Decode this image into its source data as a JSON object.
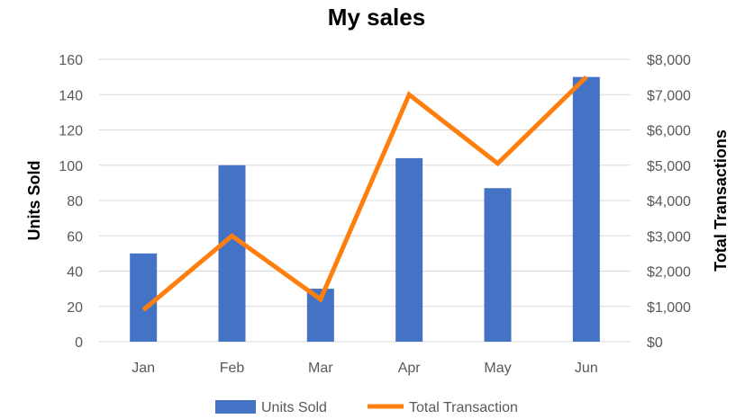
{
  "chart_data": {
    "type": "bar",
    "title": "My sales",
    "categories": [
      "Jan",
      "Feb",
      "Mar",
      "Apr",
      "May",
      "Jun"
    ],
    "series": [
      {
        "name": "Units Sold",
        "type": "bar",
        "axis": "left",
        "color": "#4472C4",
        "values": [
          50,
          100,
          30,
          104,
          87,
          150
        ]
      },
      {
        "name": "Total Transaction",
        "type": "line",
        "axis": "right",
        "color": "#FF7F0E",
        "values": [
          900,
          3000,
          1200,
          7000,
          5050,
          7500
        ]
      }
    ],
    "ylabel": "Units Sold",
    "y2label": "Total Transactions",
    "ylim": [
      0,
      160
    ],
    "yticks": [
      0,
      20,
      40,
      60,
      80,
      100,
      120,
      140,
      160
    ],
    "y2lim": [
      0,
      8000
    ],
    "y2ticks": [
      "$0",
      "$1,000",
      "$2,000",
      "$3,000",
      "$4,000",
      "$5,000",
      "$6,000",
      "$7,000",
      "$8,000"
    ],
    "grid": true,
    "legend_position": "bottom"
  }
}
